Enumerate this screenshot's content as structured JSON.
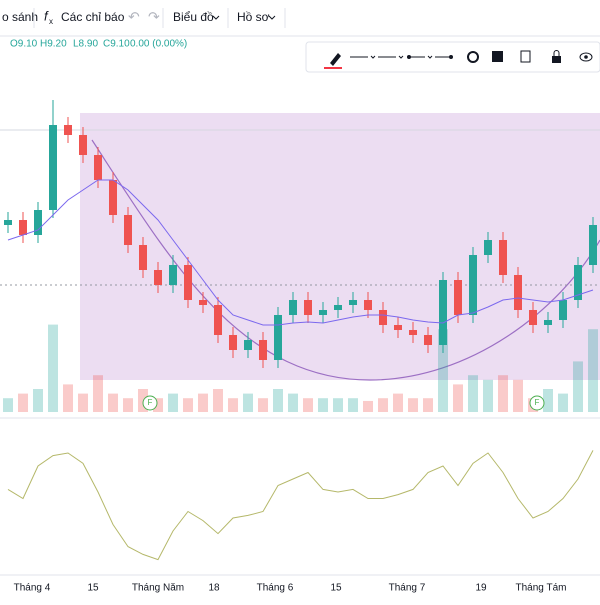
{
  "toolbar": {
    "compare": "o sánh",
    "indicators": "Các chỉ báo",
    "chart": "Biểu đồ",
    "profile": "Hồ sơ"
  },
  "legend": [
    "O9.10",
    "H9.20",
    "L8.90",
    "C9.10",
    "0.00 (0.00%)"
  ],
  "x_labels": [
    "Tháng 4",
    "15",
    "Tháng Năm",
    "18",
    "Tháng 6",
    "15",
    "Tháng 7",
    "19",
    "Tháng Tám"
  ],
  "chart_data": {
    "type": "candlestick",
    "ylim": [
      8.15,
      11.35
    ],
    "open": [
      9.7,
      9.75,
      9.6,
      9.85,
      10.7,
      10.6,
      10.4,
      10.15,
      9.8,
      9.5,
      9.25,
      9.1,
      9.3,
      8.95,
      8.9,
      8.6,
      8.45,
      8.55,
      8.35,
      8.8,
      8.95,
      8.8,
      8.85,
      8.9,
      8.95,
      8.85,
      8.7,
      8.65,
      8.6,
      8.5,
      9.15,
      8.8,
      9.4,
      9.55,
      9.2,
      8.85,
      8.7,
      8.75,
      8.95,
      9.3
    ],
    "high": [
      9.83,
      9.83,
      9.93,
      10.95,
      10.78,
      10.68,
      10.48,
      10.23,
      9.88,
      9.58,
      9.33,
      9.4,
      9.38,
      9.03,
      8.98,
      8.68,
      8.63,
      8.63,
      8.88,
      9.03,
      9.03,
      8.93,
      8.98,
      9.03,
      9.03,
      8.93,
      8.78,
      8.73,
      8.68,
      9.23,
      9.23,
      9.48,
      9.63,
      9.63,
      9.28,
      8.93,
      8.83,
      9.03,
      9.38,
      9.78
    ],
    "low": [
      9.62,
      9.52,
      9.52,
      9.77,
      10.52,
      10.32,
      10.07,
      9.72,
      9.42,
      9.17,
      9.02,
      9.02,
      8.87,
      8.82,
      8.52,
      8.37,
      8.37,
      8.27,
      8.27,
      8.72,
      8.72,
      8.72,
      8.77,
      8.82,
      8.77,
      8.62,
      8.57,
      8.52,
      8.42,
      8.42,
      8.72,
      8.72,
      9.32,
      9.12,
      8.77,
      8.62,
      8.62,
      8.67,
      8.87,
      9.22
    ],
    "close": [
      9.75,
      9.6,
      9.85,
      10.7,
      10.6,
      10.4,
      10.15,
      9.8,
      9.5,
      9.25,
      9.1,
      9.3,
      8.95,
      8.9,
      8.6,
      8.45,
      8.55,
      8.35,
      8.8,
      8.95,
      8.8,
      8.85,
      8.9,
      8.95,
      8.85,
      8.7,
      8.65,
      8.6,
      8.5,
      9.15,
      8.8,
      9.4,
      9.55,
      9.2,
      8.85,
      8.7,
      8.75,
      8.95,
      9.3,
      9.7
    ],
    "ma": [
      9.55,
      9.6,
      9.65,
      9.8,
      9.95,
      10.05,
      10.15,
      10.15,
      10.05,
      9.9,
      9.75,
      9.55,
      9.35,
      9.15,
      8.95,
      8.8,
      8.75,
      8.7,
      8.7,
      8.72,
      8.73,
      8.72,
      8.75,
      8.78,
      8.8,
      8.8,
      8.78,
      8.75,
      8.73,
      8.72,
      8.8,
      8.82,
      8.88,
      8.95,
      8.97,
      8.95,
      8.93,
      8.95,
      9.0,
      9.05
    ],
    "ma_color": "#7b68ee",
    "volume": [
      15,
      20,
      25,
      95,
      30,
      20,
      40,
      20,
      15,
      25,
      15,
      20,
      15,
      20,
      25,
      15,
      20,
      15,
      25,
      20,
      15,
      15,
      15,
      15,
      12,
      15,
      20,
      15,
      15,
      90,
      30,
      40,
      35,
      40,
      35,
      15,
      25,
      20,
      55,
      90
    ],
    "volume_lim": [
      0,
      100
    ],
    "oscillator": [
      62,
      55,
      80,
      88,
      90,
      82,
      60,
      35,
      18,
      12,
      8,
      30,
      45,
      38,
      28,
      40,
      42,
      45,
      65,
      70,
      75,
      62,
      60,
      62,
      55,
      55,
      58,
      62,
      75,
      80,
      65,
      82,
      90,
      75,
      55,
      40,
      45,
      55,
      70,
      92
    ],
    "oscillator_lim": [
      0,
      100
    ],
    "oscillator_color": "#b5b86a",
    "up_color": "#26a69a",
    "down_color": "#ef5350"
  }
}
